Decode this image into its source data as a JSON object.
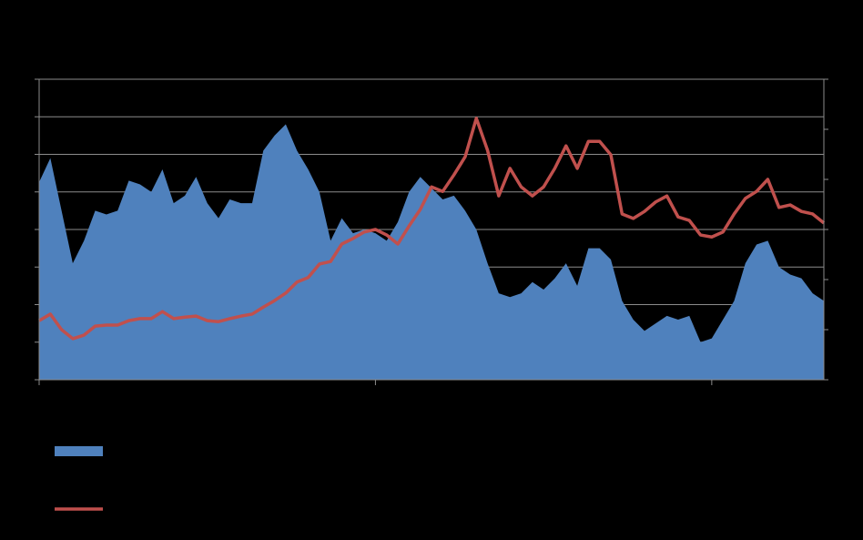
{
  "chart_data": {
    "type": "area-line",
    "x": [
      0,
      2,
      4,
      6,
      8,
      10,
      12,
      14,
      16,
      18,
      20,
      22,
      24,
      26,
      28,
      30,
      32,
      34,
      36,
      38,
      40,
      42,
      44,
      46,
      48,
      50,
      52,
      54,
      56,
      58,
      60,
      62,
      64,
      66,
      68,
      70,
      72,
      74,
      76,
      78,
      80,
      82,
      84,
      86,
      88,
      90,
      92,
      94,
      96,
      98,
      100,
      102,
      104,
      106,
      108,
      110,
      112,
      114,
      116,
      118,
      120,
      122,
      124,
      126,
      128,
      130,
      132,
      134,
      136,
      138,
      140
    ],
    "xlim": [
      0,
      140
    ],
    "xticks": [
      0,
      60,
      120
    ],
    "ylim": [
      0,
      8
    ],
    "yticks": [
      0,
      1,
      2,
      3,
      4,
      5,
      6,
      7,
      8
    ],
    "y2lim": [
      0,
      6
    ],
    "y2ticks": [
      0,
      1,
      2,
      3,
      4,
      5,
      6
    ],
    "grid": true,
    "series": [
      {
        "kind": "area",
        "color": "#4f81bd",
        "values": [
          5.26,
          5.9,
          4.5,
          3.1,
          3.7,
          4.5,
          4.4,
          4.5,
          5.3,
          5.2,
          5.0,
          5.6,
          4.7,
          4.9,
          5.4,
          4.7,
          4.3,
          4.8,
          4.7,
          4.7,
          6.1,
          6.5,
          6.8,
          6.1,
          5.6,
          5.0,
          3.7,
          4.3,
          3.9,
          4.0,
          3.9,
          3.7,
          4.2,
          5.0,
          5.4,
          5.1,
          4.8,
          4.9,
          4.5,
          4.0,
          3.1,
          2.3,
          2.2,
          2.3,
          2.6,
          2.4,
          2.7,
          3.1,
          2.5,
          3.5,
          3.5,
          3.2,
          2.1,
          1.6,
          1.3,
          1.5,
          1.7,
          1.6,
          1.7,
          1.0,
          1.1,
          1.6,
          2.1,
          3.1,
          3.6,
          3.7,
          3.0,
          2.8,
          2.7,
          2.3,
          2.1
        ]
      },
      {
        "kind": "line",
        "axis": "y2",
        "color": "#c0504d",
        "values": [
          1.18,
          1.31,
          1.0,
          0.82,
          0.89,
          1.07,
          1.09,
          1.09,
          1.18,
          1.22,
          1.22,
          1.36,
          1.22,
          1.25,
          1.27,
          1.18,
          1.16,
          1.22,
          1.27,
          1.31,
          1.45,
          1.58,
          1.73,
          1.95,
          2.04,
          2.31,
          2.36,
          2.71,
          2.82,
          2.95,
          3.0,
          2.89,
          2.71,
          3.07,
          3.4,
          3.85,
          3.76,
          4.09,
          4.45,
          5.22,
          4.58,
          3.67,
          4.22,
          3.85,
          3.67,
          3.85,
          4.22,
          4.67,
          4.22,
          4.76,
          4.76,
          4.49,
          3.31,
          3.22,
          3.36,
          3.55,
          3.67,
          3.25,
          3.18,
          2.89,
          2.85,
          2.95,
          3.31,
          3.62,
          3.76,
          4.0,
          3.44,
          3.49,
          3.36,
          3.31,
          3.13
        ]
      }
    ]
  }
}
